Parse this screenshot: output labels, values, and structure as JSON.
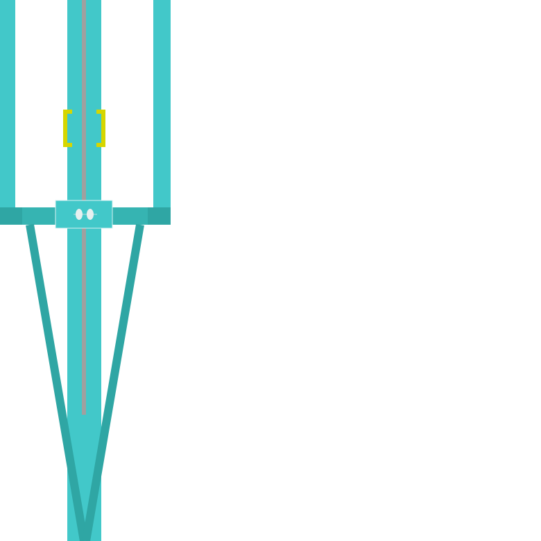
{
  "colors": {
    "background": "#ffffff",
    "structure": "#42c8c9",
    "structure_dark": "#2fa6a4",
    "rope": "#a0a0a0",
    "marker": "#d6d600",
    "lens": "#e7f0f0"
  },
  "icons": {
    "target_marker": "bracket-marker-icon",
    "pulley": "pulley-icon"
  }
}
